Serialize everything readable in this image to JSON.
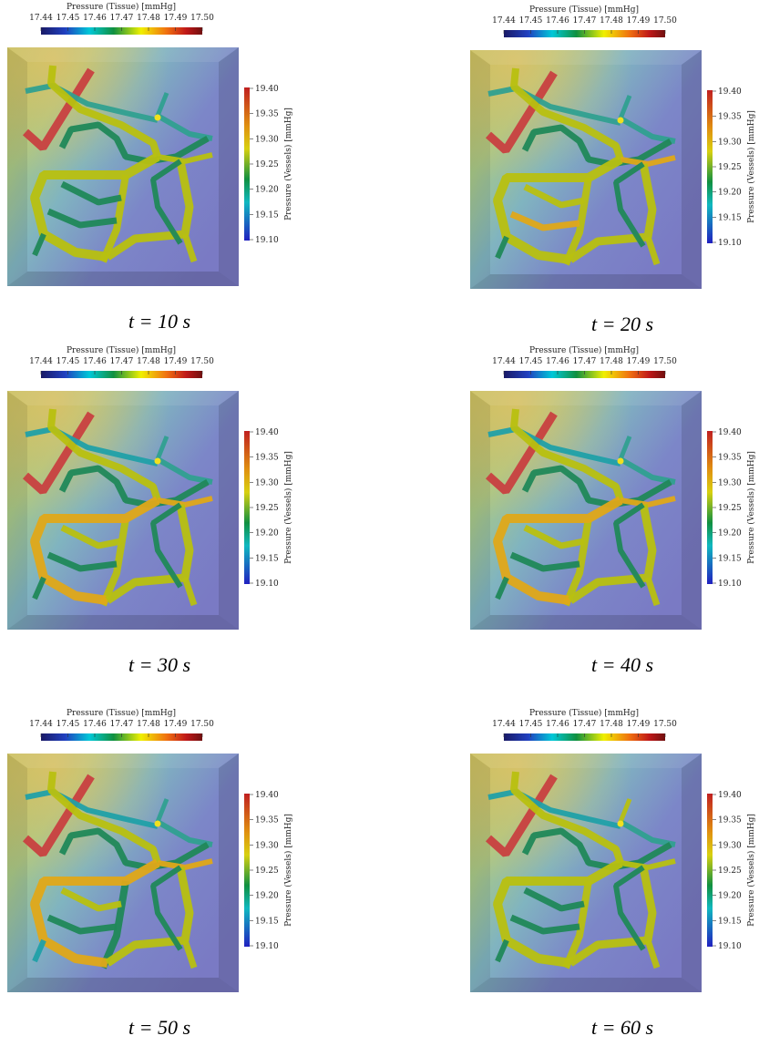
{
  "panels": [
    {
      "tissue_colorbar": {
        "title": "Pressure (Tissue) [mmHg]",
        "ticks": [
          "17.44",
          "17.45",
          "17.46",
          "17.47",
          "17.48",
          "17.49",
          "17.50"
        ]
      },
      "vessel_colorbar": {
        "title": "Pressure (Vessels) [mmHg]",
        "ticks": [
          "19.40",
          "19.35",
          "19.30",
          "19.25",
          "19.20",
          "19.15",
          "19.10"
        ]
      },
      "caption": "t = 10 s"
    },
    {
      "tissue_colorbar": {
        "title": "Pressure (Tissue) [mmHg]",
        "ticks": [
          "17.44",
          "17.45",
          "17.46",
          "17.47",
          "17.48",
          "17.49",
          "17.50"
        ]
      },
      "vessel_colorbar": {
        "title": "Pressure (Vessels) [mmHg]",
        "ticks": [
          "19.40",
          "19.35",
          "19.30",
          "19.25",
          "19.20",
          "19.15",
          "19.10"
        ]
      },
      "caption": "t = 20 s"
    },
    {
      "tissue_colorbar": {
        "title": "Pressure (Tissue) [mmHg]",
        "ticks": [
          "17.44",
          "17.45",
          "17.46",
          "17.47",
          "17.48",
          "17.49",
          "17.50"
        ]
      },
      "vessel_colorbar": {
        "title": "Pressure (Vessels) [mmHg]",
        "ticks": [
          "19.40",
          "19.35",
          "19.30",
          "19.25",
          "19.20",
          "19.15",
          "19.10"
        ]
      },
      "caption": "t = 30 s"
    },
    {
      "tissue_colorbar": {
        "title": "Pressure (Tissue) [mmHg]",
        "ticks": [
          "17.44",
          "17.45",
          "17.46",
          "17.47",
          "17.48",
          "17.49",
          "17.50"
        ]
      },
      "vessel_colorbar": {
        "title": "Pressure (Vessels) [mmHg]",
        "ticks": [
          "19.40",
          "19.35",
          "19.30",
          "19.25",
          "19.20",
          "19.15",
          "19.10"
        ]
      },
      "caption": "t = 40 s"
    },
    {
      "tissue_colorbar": {
        "title": "Pressure (Tissue) [mmHg]",
        "ticks": [
          "17.44",
          "17.45",
          "17.46",
          "17.47",
          "17.48",
          "17.49",
          "17.50"
        ]
      },
      "vessel_colorbar": {
        "title": "Pressure (Vessels) [mmHg]",
        "ticks": [
          "19.40",
          "19.35",
          "19.30",
          "19.25",
          "19.20",
          "19.15",
          "19.10"
        ]
      },
      "caption": "t = 50 s"
    },
    {
      "tissue_colorbar": {
        "title": "Pressure (Tissue) [mmHg]",
        "ticks": [
          "17.44",
          "17.45",
          "17.46",
          "17.47",
          "17.48",
          "17.49",
          "17.50"
        ]
      },
      "vessel_colorbar": {
        "title": "Pressure (Vessels) [mmHg]",
        "ticks": [
          "19.40",
          "19.35",
          "19.30",
          "19.25",
          "19.20",
          "19.15",
          "19.10"
        ]
      },
      "caption": "t = 60 s"
    }
  ]
}
